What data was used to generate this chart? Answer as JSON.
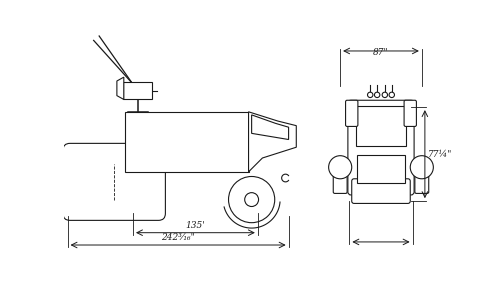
{
  "bg_color": "#ffffff",
  "line_color": "#1a1a1a",
  "fig_width": 5.0,
  "fig_height": 2.9,
  "dpi": 100,
  "dim_87_label": "87\"",
  "dim_771_label": "77¼\"",
  "dim_135_label": "135'",
  "dim_2423_label": "242³⁄₁₆\""
}
